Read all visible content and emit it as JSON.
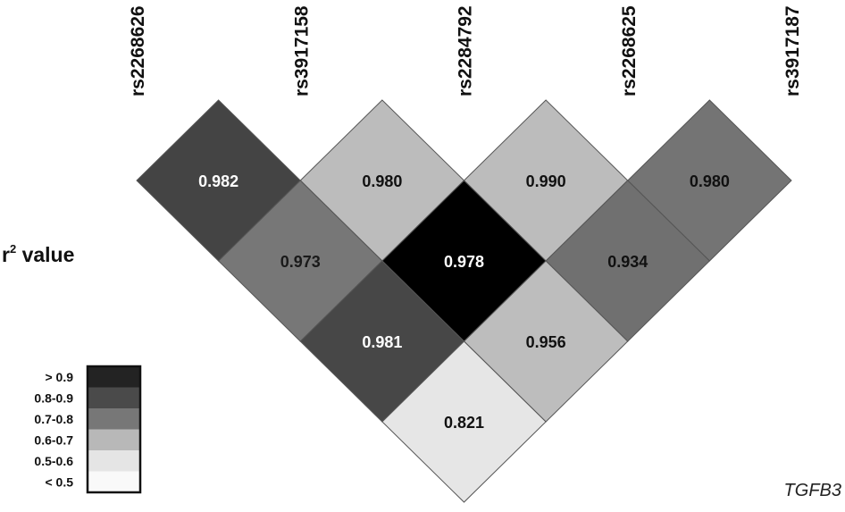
{
  "chart_data": {
    "type": "heatmap",
    "subtype": "LD triangle plot",
    "title": "r2 value",
    "title_main": "r",
    "title_sup": "2",
    "title_rest": " value",
    "gene_label": "TGFB3",
    "snps": [
      "rs2268626",
      "rs3917158",
      "rs2284792",
      "rs2268625",
      "rs3917187"
    ],
    "cells": [
      {
        "i": 0,
        "j": 1,
        "value": "0.982",
        "color": "#444444",
        "text_color": "#ffffff"
      },
      {
        "i": 1,
        "j": 2,
        "value": "0.980",
        "color": "#bcbcbc",
        "text_color": "#111111"
      },
      {
        "i": 2,
        "j": 3,
        "value": "0.990",
        "color": "#bcbcbc",
        "text_color": "#111111"
      },
      {
        "i": 3,
        "j": 4,
        "value": "0.980",
        "color": "#747474",
        "text_color": "#111111"
      },
      {
        "i": 0,
        "j": 2,
        "value": "0.973",
        "color": "#777777",
        "text_color": "#1a1a1a"
      },
      {
        "i": 1,
        "j": 3,
        "value": "0.978",
        "color": "#000000",
        "text_color": "#ffffff"
      },
      {
        "i": 2,
        "j": 4,
        "value": "0.934",
        "color": "#707070",
        "text_color": "#111111"
      },
      {
        "i": 0,
        "j": 3,
        "value": "0.981",
        "color": "#474747",
        "text_color": "#ffffff"
      },
      {
        "i": 1,
        "j": 4,
        "value": "0.956",
        "color": "#bdbdbd",
        "text_color": "#111111"
      },
      {
        "i": 0,
        "j": 4,
        "value": "0.821",
        "color": "#e6e6e6",
        "text_color": "#111111"
      }
    ],
    "legend": [
      {
        "label": "> 0.9",
        "color": "#232323"
      },
      {
        "label": "0.8-0.9",
        "color": "#4a4a4a"
      },
      {
        "label": "0.7-0.8",
        "color": "#777777"
      },
      {
        "label": "0.6-0.7",
        "color": "#b8b8b8"
      },
      {
        "label": "0.5-0.6",
        "color": "#e5e5e5"
      },
      {
        "label": "< 0.5",
        "color": "#f9f9f9"
      }
    ],
    "legend_placement": "bottom-left"
  }
}
